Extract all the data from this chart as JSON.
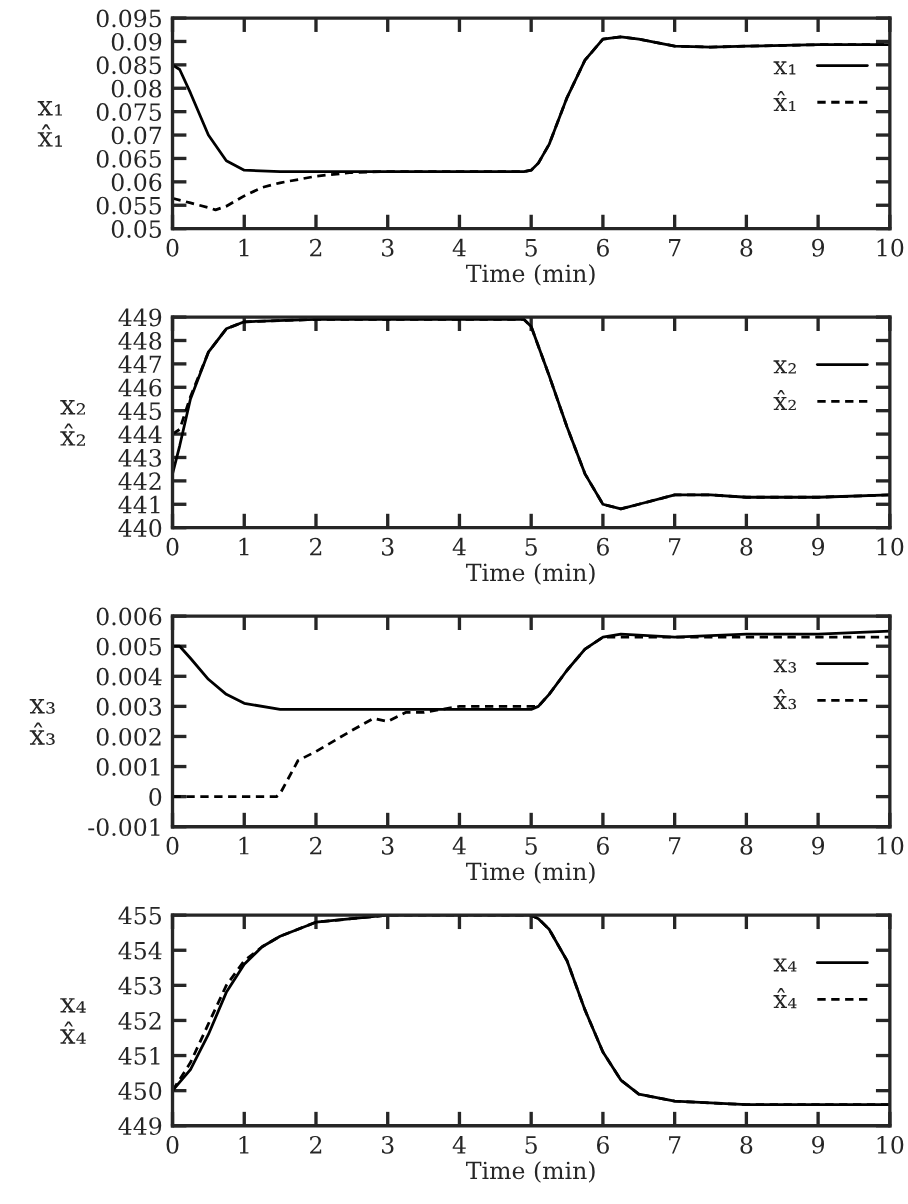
{
  "chart_data": [
    {
      "type": "line",
      "xlabel": "Time (min)",
      "ylabel": "x₁\nx̂₁",
      "xlim": [
        0,
        10
      ],
      "xticks": [
        0,
        1,
        2,
        3,
        4,
        5,
        6,
        7,
        8,
        9,
        10
      ],
      "ylim": [
        0.05,
        0.095
      ],
      "yticks": [
        0.05,
        0.055,
        0.06,
        0.065,
        0.07,
        0.075,
        0.08,
        0.085,
        0.09,
        0.095
      ],
      "legend": "top right",
      "grid": false,
      "series": [
        {
          "name": "x₁",
          "color": "#000000",
          "line_style": "solid",
          "x": [
            0,
            0.1,
            0.25,
            0.5,
            0.75,
            1,
            1.5,
            2,
            3,
            4,
            4.9,
            5,
            5.1,
            5.25,
            5.5,
            5.75,
            6,
            6.25,
            6.5,
            7,
            7.5,
            8,
            9,
            10
          ],
          "values": [
            0.085,
            0.084,
            0.079,
            0.07,
            0.0645,
            0.0625,
            0.0622,
            0.0622,
            0.0622,
            0.0622,
            0.0622,
            0.0625,
            0.064,
            0.068,
            0.078,
            0.086,
            0.0905,
            0.091,
            0.0905,
            0.089,
            0.0888,
            0.089,
            0.0893,
            0.0893
          ]
        },
        {
          "name": "x̂₁",
          "color": "#000000",
          "line_style": "dashed",
          "x": [
            0,
            0.25,
            0.5,
            0.6,
            0.75,
            1,
            1.25,
            1.5,
            1.75,
            2,
            2.5,
            3,
            4,
            4.9,
            5,
            5.1,
            5.25,
            5.5,
            5.75,
            6,
            6.25,
            6.5,
            7,
            7.5,
            8,
            9,
            10
          ],
          "values": [
            0.0565,
            0.0555,
            0.0545,
            0.054,
            0.0548,
            0.057,
            0.0588,
            0.0598,
            0.0605,
            0.0612,
            0.062,
            0.0622,
            0.0622,
            0.0622,
            0.0625,
            0.064,
            0.068,
            0.078,
            0.086,
            0.0905,
            0.091,
            0.0905,
            0.089,
            0.0888,
            0.089,
            0.0893,
            0.0893
          ]
        }
      ]
    },
    {
      "type": "line",
      "xlabel": "Time (min)",
      "ylabel": "x₂\nx̂₂",
      "xlim": [
        0,
        10
      ],
      "xticks": [
        0,
        1,
        2,
        3,
        4,
        5,
        6,
        7,
        8,
        9,
        10
      ],
      "ylim": [
        440,
        449
      ],
      "yticks": [
        440,
        441,
        442,
        443,
        444,
        445,
        446,
        447,
        448,
        449
      ],
      "legend": "top right",
      "grid": false,
      "series": [
        {
          "name": "x₂",
          "color": "#000000",
          "line_style": "solid",
          "x": [
            0,
            0.1,
            0.25,
            0.5,
            0.75,
            1,
            2,
            3,
            4,
            4.9,
            5,
            5.25,
            5.5,
            5.75,
            6,
            6.25,
            6.5,
            7,
            7.5,
            8,
            9,
            10
          ],
          "values": [
            442.3,
            443.5,
            445.5,
            447.5,
            448.5,
            448.8,
            448.9,
            448.9,
            448.9,
            448.9,
            448.6,
            446.5,
            444.3,
            442.3,
            441.0,
            440.8,
            441.0,
            441.4,
            441.4,
            441.3,
            441.3,
            441.4
          ]
        },
        {
          "name": "x̂₂",
          "color": "#000000",
          "line_style": "dashed",
          "x": [
            0,
            0.1,
            0.25,
            0.5,
            0.75,
            1,
            2,
            3,
            4,
            4.9,
            5,
            5.25,
            5.5,
            5.75,
            6,
            6.25,
            6.5,
            7,
            7.5,
            8,
            9,
            10
          ],
          "values": [
            444.0,
            444.2,
            445.6,
            447.5,
            448.5,
            448.8,
            448.9,
            448.9,
            448.9,
            448.9,
            448.6,
            446.5,
            444.3,
            442.3,
            441.0,
            440.8,
            441.0,
            441.4,
            441.4,
            441.3,
            441.3,
            441.4
          ]
        }
      ]
    },
    {
      "type": "line",
      "xlabel": "Time (min)",
      "ylabel": "x₃\nx̂₃",
      "xlim": [
        0,
        10
      ],
      "xticks": [
        0,
        1,
        2,
        3,
        4,
        5,
        6,
        7,
        8,
        9,
        10
      ],
      "ylim": [
        -0.001,
        0.006
      ],
      "yticks": [
        -0.001,
        0,
        0.001,
        0.002,
        0.003,
        0.004,
        0.005,
        0.006
      ],
      "legend": "top right",
      "grid": false,
      "series": [
        {
          "name": "x₃",
          "color": "#000000",
          "line_style": "solid",
          "x": [
            0,
            0.1,
            0.25,
            0.5,
            0.75,
            1,
            1.5,
            2,
            3,
            4,
            5,
            5.1,
            5.25,
            5.5,
            5.75,
            6,
            6.25,
            7,
            8,
            9,
            10
          ],
          "values": [
            0.005,
            0.005,
            0.0046,
            0.0039,
            0.0034,
            0.0031,
            0.0029,
            0.0029,
            0.0029,
            0.0029,
            0.0029,
            0.003,
            0.0034,
            0.0042,
            0.0049,
            0.0053,
            0.0054,
            0.0053,
            0.0054,
            0.0054,
            0.0055
          ]
        },
        {
          "name": "x̂₃",
          "color": "#000000",
          "line_style": "dashed",
          "x": [
            0,
            1,
            1.45,
            1.5,
            1.75,
            2,
            2.5,
            2.8,
            3,
            3.25,
            3.5,
            4,
            5,
            5.1,
            5.25,
            5.5,
            5.75,
            6,
            6.25,
            7,
            8,
            9,
            10
          ],
          "values": [
            0,
            0,
            0,
            0.0001,
            0.0012,
            0.0015,
            0.0022,
            0.0026,
            0.0025,
            0.0028,
            0.0028,
            0.003,
            0.003,
            0.003,
            0.0034,
            0.0042,
            0.0049,
            0.0053,
            0.0053,
            0.0053,
            0.0053,
            0.0053,
            0.0053
          ]
        }
      ]
    },
    {
      "type": "line",
      "xlabel": "Time (min)",
      "ylabel": "x₄\nx̂₄",
      "xlim": [
        0,
        10
      ],
      "xticks": [
        0,
        1,
        2,
        3,
        4,
        5,
        6,
        7,
        8,
        9,
        10
      ],
      "ylim": [
        449,
        455
      ],
      "yticks": [
        449,
        450,
        451,
        452,
        453,
        454,
        455
      ],
      "legend": "top right",
      "grid": false,
      "series": [
        {
          "name": "x₄",
          "color": "#000000",
          "line_style": "solid",
          "x": [
            0,
            0.25,
            0.5,
            0.75,
            1,
            1.25,
            1.5,
            2,
            2.5,
            3,
            5,
            5.1,
            5.25,
            5.5,
            5.75,
            6,
            6.25,
            6.5,
            7,
            8,
            9,
            10
          ],
          "values": [
            450,
            450.6,
            451.6,
            452.8,
            453.6,
            454.1,
            454.4,
            454.8,
            454.9,
            455,
            455,
            454.9,
            454.6,
            453.7,
            452.3,
            451.1,
            450.3,
            449.9,
            449.7,
            449.6,
            449.6,
            449.6
          ]
        },
        {
          "name": "x̂₄",
          "color": "#000000",
          "line_style": "dashed",
          "x": [
            0,
            0.25,
            0.5,
            0.75,
            1,
            1.25,
            1.5,
            2,
            2.5,
            3,
            5,
            5.1,
            5.25,
            5.5,
            5.75,
            6,
            6.25,
            6.5,
            7,
            8,
            9,
            10
          ],
          "values": [
            450,
            450.8,
            451.9,
            453.0,
            453.7,
            454.1,
            454.4,
            454.8,
            454.9,
            455,
            455,
            454.9,
            454.6,
            453.7,
            452.3,
            451.1,
            450.3,
            449.9,
            449.7,
            449.6,
            449.6,
            449.6
          ]
        }
      ]
    }
  ]
}
